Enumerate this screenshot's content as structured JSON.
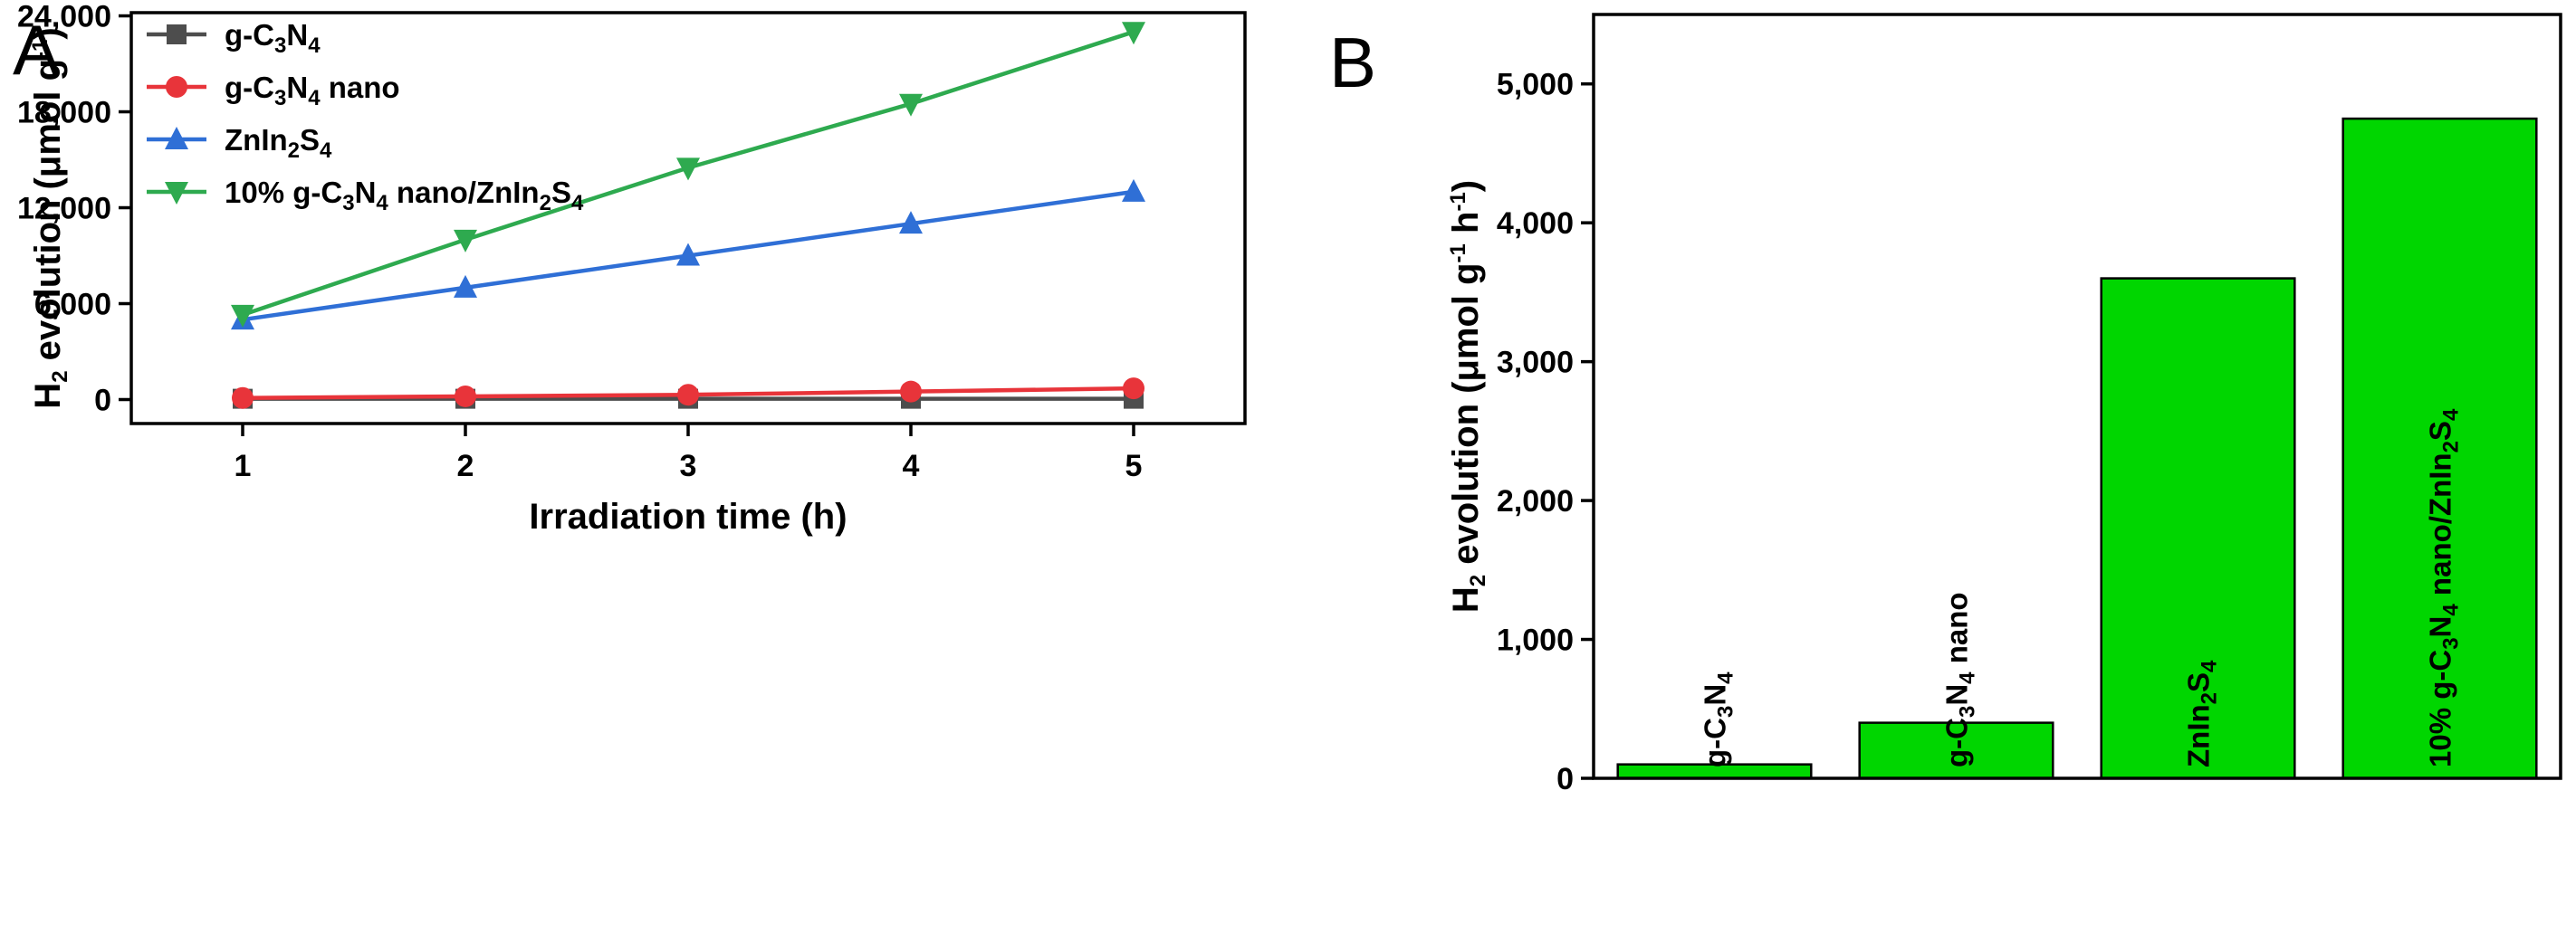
{
  "chart_data": [
    {
      "panel": "A",
      "type": "line",
      "x": [
        1,
        2,
        3,
        4,
        5
      ],
      "xlim": [
        0.5,
        5.5
      ],
      "ylim": [
        -1500,
        24200
      ],
      "yticks": [
        0,
        6000,
        12000,
        18000,
        24000
      ],
      "ytick_labels": [
        "0",
        "6,000",
        "12,000",
        "18,000",
        "24,000"
      ],
      "xticks": [
        1,
        2,
        3,
        4,
        5
      ],
      "xtick_labels": [
        "1",
        "2",
        "3",
        "4",
        "5"
      ],
      "xlabel": "Irradiation time (h)",
      "ylabel": {
        "a": "H",
        "b": "2",
        "c": " evolution (μmol g",
        "d": "-1",
        "e": ")"
      },
      "legend_position": "top-left",
      "series": [
        {
          "key": "gc3n4",
          "name": {
            "a": "g-C",
            "b": "3",
            "c": "N",
            "d": "4",
            "e": ""
          },
          "color": "#4d4d4d",
          "marker": "square",
          "values": [
            50,
            50,
            50,
            50,
            50
          ]
        },
        {
          "key": "gc3n4nano",
          "name": {
            "a": "g-C",
            "b": "3",
            "c": "N",
            "d": "4",
            "e": " nano"
          },
          "color": "#e8343a",
          "marker": "circle",
          "values": [
            100,
            200,
            300,
            500,
            700
          ]
        },
        {
          "key": "znin2s4",
          "name": {
            "a": "ZnIn",
            "b": "2",
            "c": "S",
            "d": "4",
            "e": ""
          },
          "color": "#2f6fd6",
          "marker": "triangle-up",
          "values": [
            5000,
            7000,
            9000,
            11000,
            13000
          ]
        },
        {
          "key": "composite",
          "name": {
            "a": "10% g-C",
            "b": "3",
            "c": "N",
            "d": "4",
            "e": " nano/ZnIn",
            "f": "2",
            "g": "S",
            "h": "4"
          },
          "color": "#2eaa4f",
          "marker": "triangle-down",
          "values": [
            5300,
            10000,
            14500,
            18500,
            23000
          ]
        }
      ]
    },
    {
      "panel": "B",
      "type": "bar",
      "categories": [
        {
          "a": "g-C",
          "b": "3",
          "c": "N",
          "d": "4",
          "e": ""
        },
        {
          "a": "g-C",
          "b": "3",
          "c": "N",
          "d": "4",
          "e": " nano"
        },
        {
          "a": "ZnIn",
          "b": "2",
          "c": "S",
          "d": "4",
          "e": ""
        },
        {
          "a": "10% g-C",
          "b": "3",
          "c": "N",
          "d": "4",
          "e": " nano/ZnIn",
          "f": "2",
          "g": "S",
          "h": "4"
        }
      ],
      "values": [
        100,
        400,
        3600,
        4750
      ],
      "ylim": [
        0,
        5500
      ],
      "yticks": [
        0,
        1000,
        2000,
        3000,
        4000,
        5000
      ],
      "ytick_labels": [
        "0",
        "1,000",
        "2,000",
        "3,000",
        "4,000",
        "5,000"
      ],
      "ylabel": {
        "a": "H",
        "b": "2",
        "c": " evolution (μmol g",
        "d": "-1",
        "e": " h",
        "f": "-1",
        "g": ")"
      },
      "bar_color": "#00d600",
      "xlabel": ""
    }
  ]
}
